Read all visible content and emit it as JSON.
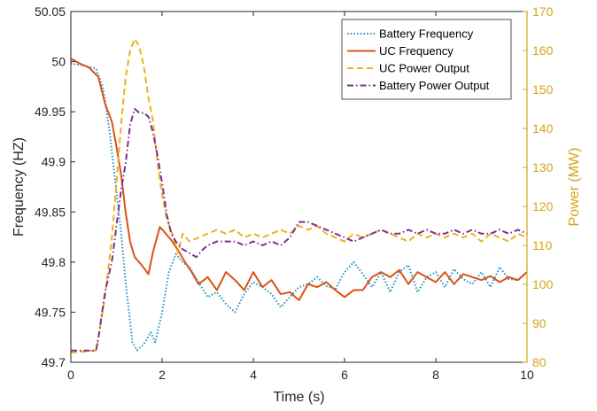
{
  "chart_data": {
    "type": "line",
    "title": "",
    "xlabel": "Time (s)",
    "ylabel": "Frequency (HZ)",
    "y2label": "Power (MW)",
    "xlim": [
      0,
      10
    ],
    "ylim": [
      49.7,
      50.05
    ],
    "y2lim": [
      80,
      170
    ],
    "xticks": [
      "0",
      "2",
      "4",
      "6",
      "8",
      "10"
    ],
    "yticks": [
      "49.7",
      "49.75",
      "49.8",
      "49.85",
      "49.9",
      "49.95",
      "50",
      "50.05"
    ],
    "y2ticks": [
      "80",
      "90",
      "100",
      "110",
      "120",
      "130",
      "140",
      "150",
      "160",
      "170"
    ],
    "grid": false,
    "legend_position": "top-right",
    "colors": {
      "battery_frequency": "#1f8fc4",
      "uc_frequency": "#d95319",
      "uc_power": "#edb120",
      "battery_power": "#7e2f8e",
      "right_axis": "#d4a514"
    },
    "series": [
      {
        "name": "Battery Frequency",
        "axis": "left",
        "style": "dotted",
        "points": [
          [
            0,
            49.998
          ],
          [
            0.3,
            49.996
          ],
          [
            0.55,
            49.993
          ],
          [
            0.7,
            49.975
          ],
          [
            0.85,
            49.93
          ],
          [
            1.0,
            49.87
          ],
          [
            1.1,
            49.83
          ],
          [
            1.2,
            49.78
          ],
          [
            1.3,
            49.74
          ],
          [
            1.35,
            49.72
          ],
          [
            1.45,
            49.712
          ],
          [
            1.6,
            49.718
          ],
          [
            1.75,
            49.73
          ],
          [
            1.85,
            49.72
          ],
          [
            2.0,
            49.75
          ],
          [
            2.15,
            49.79
          ],
          [
            2.3,
            49.808
          ],
          [
            2.45,
            49.8
          ],
          [
            2.6,
            49.795
          ],
          [
            2.8,
            49.78
          ],
          [
            3.0,
            49.765
          ],
          [
            3.2,
            49.77
          ],
          [
            3.4,
            49.758
          ],
          [
            3.6,
            49.75
          ],
          [
            3.8,
            49.768
          ],
          [
            4.0,
            49.78
          ],
          [
            4.2,
            49.775
          ],
          [
            4.4,
            49.768
          ],
          [
            4.6,
            49.755
          ],
          [
            4.8,
            49.765
          ],
          [
            5.0,
            49.775
          ],
          [
            5.2,
            49.778
          ],
          [
            5.4,
            49.785
          ],
          [
            5.6,
            49.776
          ],
          [
            5.8,
            49.773
          ],
          [
            6.0,
            49.79
          ],
          [
            6.2,
            49.8
          ],
          [
            6.4,
            49.788
          ],
          [
            6.6,
            49.775
          ],
          [
            6.8,
            49.79
          ],
          [
            7.0,
            49.77
          ],
          [
            7.2,
            49.79
          ],
          [
            7.4,
            49.797
          ],
          [
            7.6,
            49.77
          ],
          [
            7.8,
            49.785
          ],
          [
            8.0,
            49.79
          ],
          [
            8.2,
            49.775
          ],
          [
            8.4,
            49.793
          ],
          [
            8.6,
            49.783
          ],
          [
            8.8,
            49.778
          ],
          [
            9.0,
            49.79
          ],
          [
            9.2,
            49.775
          ],
          [
            9.4,
            49.795
          ],
          [
            9.6,
            49.783
          ],
          [
            9.8,
            49.782
          ],
          [
            10,
            49.79
          ]
        ]
      },
      {
        "name": "UC Frequency",
        "axis": "left",
        "style": "solid",
        "points": [
          [
            0,
            50.003
          ],
          [
            0.2,
            49.998
          ],
          [
            0.4,
            49.994
          ],
          [
            0.6,
            49.985
          ],
          [
            0.75,
            49.958
          ],
          [
            0.9,
            49.94
          ],
          [
            1.0,
            49.915
          ],
          [
            1.1,
            49.888
          ],
          [
            1.2,
            49.85
          ],
          [
            1.3,
            49.82
          ],
          [
            1.4,
            49.805
          ],
          [
            1.55,
            49.797
          ],
          [
            1.7,
            49.788
          ],
          [
            1.8,
            49.81
          ],
          [
            1.95,
            49.835
          ],
          [
            2.05,
            49.83
          ],
          [
            2.2,
            49.822
          ],
          [
            2.35,
            49.812
          ],
          [
            2.5,
            49.8
          ],
          [
            2.65,
            49.79
          ],
          [
            2.8,
            49.778
          ],
          [
            3.0,
            49.785
          ],
          [
            3.2,
            49.772
          ],
          [
            3.4,
            49.79
          ],
          [
            3.6,
            49.782
          ],
          [
            3.8,
            49.772
          ],
          [
            4.0,
            49.79
          ],
          [
            4.2,
            49.775
          ],
          [
            4.4,
            49.782
          ],
          [
            4.6,
            49.768
          ],
          [
            4.8,
            49.77
          ],
          [
            5.0,
            49.762
          ],
          [
            5.2,
            49.778
          ],
          [
            5.4,
            49.775
          ],
          [
            5.6,
            49.78
          ],
          [
            5.8,
            49.772
          ],
          [
            6.0,
            49.765
          ],
          [
            6.2,
            49.772
          ],
          [
            6.4,
            49.772
          ],
          [
            6.6,
            49.785
          ],
          [
            6.8,
            49.79
          ],
          [
            7.0,
            49.785
          ],
          [
            7.2,
            49.792
          ],
          [
            7.4,
            49.778
          ],
          [
            7.6,
            49.79
          ],
          [
            7.8,
            49.785
          ],
          [
            8.0,
            49.78
          ],
          [
            8.2,
            49.79
          ],
          [
            8.4,
            49.778
          ],
          [
            8.6,
            49.788
          ],
          [
            8.8,
            49.785
          ],
          [
            9.0,
            49.782
          ],
          [
            9.2,
            49.786
          ],
          [
            9.4,
            49.78
          ],
          [
            9.6,
            49.785
          ],
          [
            9.8,
            49.782
          ],
          [
            10,
            49.79
          ]
        ]
      },
      {
        "name": "UC Power Output",
        "axis": "right",
        "style": "dashed",
        "points": [
          [
            0,
            82.5
          ],
          [
            0.55,
            83
          ],
          [
            0.6,
            86
          ],
          [
            0.75,
            97
          ],
          [
            0.9,
            112
          ],
          [
            1.0,
            126
          ],
          [
            1.1,
            141
          ],
          [
            1.2,
            153
          ],
          [
            1.3,
            160
          ],
          [
            1.4,
            163
          ],
          [
            1.5,
            161
          ],
          [
            1.6,
            156
          ],
          [
            1.7,
            148
          ],
          [
            1.8,
            142
          ],
          [
            1.9,
            131
          ],
          [
            2.0,
            123
          ],
          [
            2.1,
            117
          ],
          [
            2.25,
            112
          ],
          [
            2.35,
            108
          ],
          [
            2.45,
            113
          ],
          [
            2.6,
            111
          ],
          [
            2.8,
            112
          ],
          [
            3.0,
            113
          ],
          [
            3.2,
            114
          ],
          [
            3.4,
            113
          ],
          [
            3.6,
            114
          ],
          [
            3.8,
            112
          ],
          [
            4.0,
            113
          ],
          [
            4.2,
            112
          ],
          [
            4.4,
            113
          ],
          [
            4.6,
            114
          ],
          [
            4.8,
            113
          ],
          [
            5.0,
            115
          ],
          [
            5.2,
            114
          ],
          [
            5.4,
            115
          ],
          [
            5.6,
            113
          ],
          [
            5.8,
            112
          ],
          [
            6.0,
            111
          ],
          [
            6.2,
            113
          ],
          [
            6.4,
            112
          ],
          [
            6.6,
            113
          ],
          [
            6.8,
            114
          ],
          [
            7.0,
            113
          ],
          [
            7.2,
            112
          ],
          [
            7.4,
            111
          ],
          [
            7.6,
            113
          ],
          [
            7.8,
            112
          ],
          [
            8.0,
            113
          ],
          [
            8.2,
            112
          ],
          [
            8.4,
            113
          ],
          [
            8.6,
            112
          ],
          [
            8.8,
            113
          ],
          [
            9.0,
            111
          ],
          [
            9.2,
            113
          ],
          [
            9.4,
            112
          ],
          [
            9.6,
            111
          ],
          [
            9.8,
            113
          ],
          [
            10,
            112
          ]
        ]
      },
      {
        "name": "Battery Power Output",
        "axis": "right",
        "style": "dashdot",
        "points": [
          [
            0,
            83
          ],
          [
            0.55,
            83
          ],
          [
            0.6,
            86
          ],
          [
            0.75,
            98
          ],
          [
            0.9,
            106
          ],
          [
            1.0,
            115
          ],
          [
            1.1,
            124
          ],
          [
            1.2,
            131
          ],
          [
            1.3,
            141
          ],
          [
            1.4,
            145
          ],
          [
            1.5,
            144
          ],
          [
            1.6,
            144
          ],
          [
            1.7,
            143
          ],
          [
            1.8,
            139
          ],
          [
            1.9,
            133
          ],
          [
            2.0,
            126
          ],
          [
            2.1,
            118
          ],
          [
            2.2,
            113
          ],
          [
            2.3,
            111
          ],
          [
            2.45,
            109
          ],
          [
            2.6,
            108
          ],
          [
            2.75,
            107
          ],
          [
            2.9,
            109
          ],
          [
            3.0,
            110
          ],
          [
            3.2,
            111
          ],
          [
            3.4,
            111
          ],
          [
            3.6,
            111
          ],
          [
            3.8,
            110
          ],
          [
            4.0,
            111
          ],
          [
            4.2,
            110
          ],
          [
            4.4,
            111
          ],
          [
            4.6,
            110
          ],
          [
            4.8,
            112
          ],
          [
            5.0,
            116
          ],
          [
            5.2,
            116
          ],
          [
            5.4,
            115
          ],
          [
            5.6,
            114
          ],
          [
            5.8,
            113
          ],
          [
            6.0,
            112
          ],
          [
            6.2,
            111
          ],
          [
            6.4,
            112
          ],
          [
            6.6,
            113
          ],
          [
            6.8,
            114
          ],
          [
            7.0,
            113
          ],
          [
            7.2,
            113
          ],
          [
            7.4,
            114
          ],
          [
            7.6,
            113
          ],
          [
            7.8,
            114
          ],
          [
            8.0,
            113
          ],
          [
            8.2,
            113
          ],
          [
            8.4,
            114
          ],
          [
            8.6,
            113
          ],
          [
            8.8,
            114
          ],
          [
            9.0,
            113
          ],
          [
            9.2,
            113
          ],
          [
            9.4,
            114
          ],
          [
            9.6,
            113
          ],
          [
            9.8,
            114
          ],
          [
            10,
            113
          ]
        ]
      }
    ]
  }
}
